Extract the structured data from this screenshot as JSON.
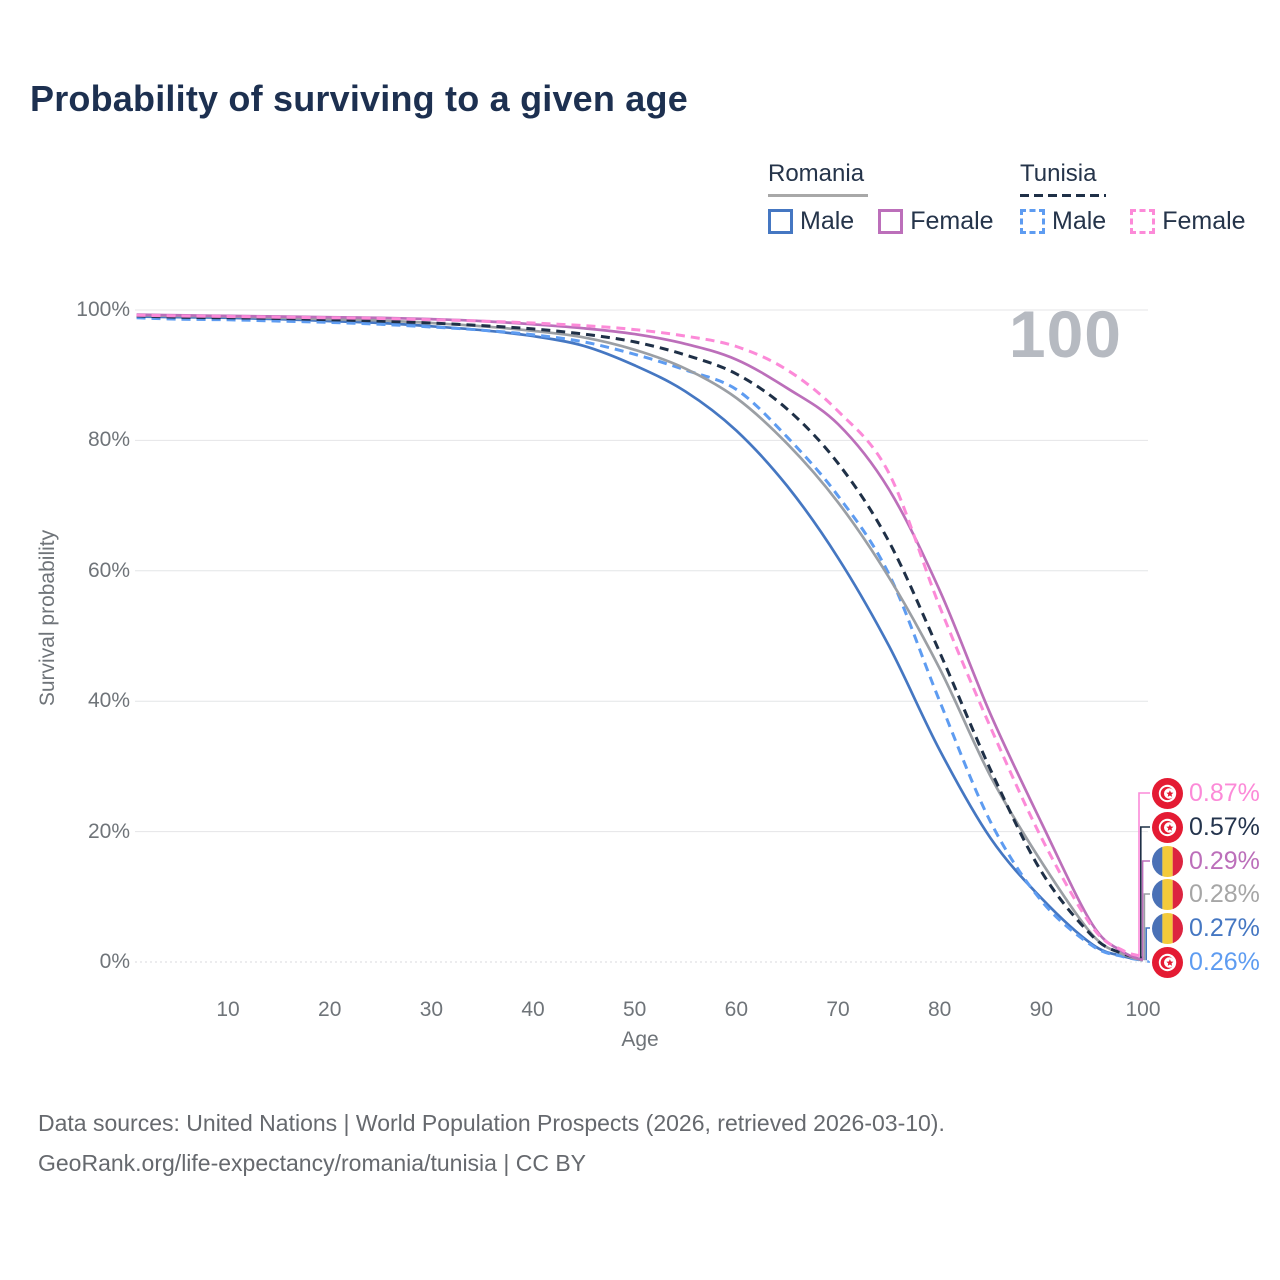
{
  "title": "Probability of surviving to a given age",
  "watermark": "100",
  "legend": {
    "groups": [
      {
        "name": "Romania",
        "line_style": "solid",
        "line_color": "#a8a8a8",
        "items": [
          {
            "label": "Male",
            "color": "#4577c2",
            "dash": false
          },
          {
            "label": "Female",
            "color": "#bc6fba",
            "dash": false
          }
        ]
      },
      {
        "name": "Tunisia",
        "line_style": "dashed",
        "line_color": "#1f3047",
        "items": [
          {
            "label": "Male",
            "color": "#5e9cf1",
            "dash": true
          },
          {
            "label": "Female",
            "color": "#fc8ad8",
            "dash": true
          }
        ]
      }
    ]
  },
  "chart_data": {
    "type": "line",
    "title": "Probability of surviving to a given age",
    "xlabel": "Age",
    "ylabel": "Survival probability",
    "xlim": [
      1,
      100
    ],
    "ylim": [
      0,
      100
    ],
    "grid": "horizontal",
    "legend_position": "top-right",
    "x_ticks": [
      10,
      20,
      30,
      40,
      50,
      60,
      70,
      80,
      90,
      100
    ],
    "y_tick_values": [
      100,
      80,
      60,
      40,
      20,
      0
    ],
    "y_tick_labels": [
      "100%",
      "80%",
      "60%",
      "40%",
      "20%",
      "0%"
    ],
    "x": [
      1,
      5,
      10,
      15,
      20,
      25,
      30,
      35,
      40,
      45,
      50,
      55,
      60,
      65,
      70,
      75,
      80,
      85,
      90,
      95,
      98,
      100
    ],
    "series": [
      {
        "name": "Romania Male",
        "country": "Romania",
        "sex": "Male",
        "style": "solid",
        "color": "#4577c2",
        "values": [
          99.0,
          98.9,
          98.8,
          98.6,
          98.3,
          98.0,
          97.5,
          96.9,
          96.0,
          94.5,
          91.5,
          87.5,
          81.5,
          73.0,
          62.0,
          48.5,
          32.5,
          19.0,
          9.8,
          2.7,
          0.9,
          0.27
        ],
        "end_label": "0.27%"
      },
      {
        "name": "Tunisia Male",
        "country": "Tunisia",
        "sex": "Male",
        "style": "dashed",
        "color": "#5e9cf1",
        "values": [
          98.8,
          98.6,
          98.5,
          98.3,
          98.1,
          97.8,
          97.4,
          96.9,
          96.2,
          95.1,
          93.2,
          90.8,
          87.8,
          80.5,
          71.5,
          59.5,
          40.0,
          21.5,
          9.4,
          2.5,
          0.85,
          0.26
        ],
        "end_label": "0.26%"
      },
      {
        "name": "Romania Total",
        "country": "Romania",
        "sex": "Total",
        "style": "solid",
        "color": "#9b9fa4",
        "values": [
          99.2,
          99.1,
          99.0,
          98.8,
          98.6,
          98.4,
          98.0,
          97.5,
          96.8,
          95.8,
          93.9,
          91.0,
          86.5,
          79.5,
          70.5,
          59.0,
          45.0,
          28.5,
          15.4,
          4.2,
          1.2,
          0.28
        ],
        "end_label": "0.28%"
      },
      {
        "name": "Tunisia Total",
        "country": "Tunisia",
        "sex": "Total",
        "style": "dashed",
        "color": "#1f3047",
        "values": [
          99.1,
          98.9,
          98.8,
          98.7,
          98.5,
          98.3,
          98.0,
          97.6,
          97.1,
          96.3,
          95.1,
          93.1,
          90.2,
          84.8,
          76.5,
          64.5,
          47.5,
          29.5,
          13.9,
          4.0,
          1.3,
          0.57
        ],
        "end_label": "0.57%"
      },
      {
        "name": "Romania Female",
        "country": "Romania",
        "sex": "Female",
        "style": "solid",
        "color": "#bc6fba",
        "values": [
          99.3,
          99.2,
          99.1,
          99.0,
          98.9,
          98.8,
          98.6,
          98.3,
          97.8,
          97.2,
          96.3,
          94.8,
          92.4,
          88.0,
          82.5,
          72.5,
          57.0,
          38.0,
          21.4,
          5.8,
          1.6,
          0.29
        ],
        "end_label": "0.29%"
      },
      {
        "name": "Tunisia Female",
        "country": "Tunisia",
        "sex": "Female",
        "style": "dashed",
        "color": "#fc8ad8",
        "values": [
          99.2,
          99.1,
          99.0,
          98.9,
          98.8,
          98.7,
          98.5,
          98.3,
          98.0,
          97.6,
          97.0,
          96.0,
          94.4,
          90.8,
          84.5,
          75.0,
          54.5,
          36.0,
          19.1,
          5.4,
          1.8,
          0.87
        ],
        "end_label": "0.87%"
      }
    ],
    "end_labels": [
      {
        "series": "Tunisia Female",
        "flag": "tunisia-flag-icon",
        "value": "0.87%",
        "color": "#fc8ad8"
      },
      {
        "series": "Tunisia Total",
        "flag": "tunisia-flag-icon",
        "value": "0.57%",
        "color": "#24344d"
      },
      {
        "series": "Romania Female",
        "flag": "romania-flag-icon",
        "value": "0.29%",
        "color": "#bc6fba"
      },
      {
        "series": "Romania Total",
        "flag": "romania-flag-icon",
        "value": "0.28%",
        "color": "#a6a6a6"
      },
      {
        "series": "Romania Male",
        "flag": "romania-flag-icon",
        "value": "0.27%",
        "color": "#4577c2"
      },
      {
        "series": "Tunisia Male",
        "flag": "tunisia-flag-icon",
        "value": "0.26%",
        "color": "#5e9cf1"
      }
    ],
    "annotations": [
      {
        "text": "100",
        "role": "watermark"
      }
    ]
  },
  "footer": {
    "line1": "Data sources: United Nations | World Population Prospects (2026, retrieved 2026-03-10).",
    "line2": "GeoRank.org/life-expectancy/romania/tunisia | CC BY"
  },
  "colors": {
    "title": "#1d3050",
    "axis_text": "#6f7479",
    "gridline": "#e4e5e7",
    "watermark": "#b6bac1",
    "footer_text": "#66696e"
  }
}
